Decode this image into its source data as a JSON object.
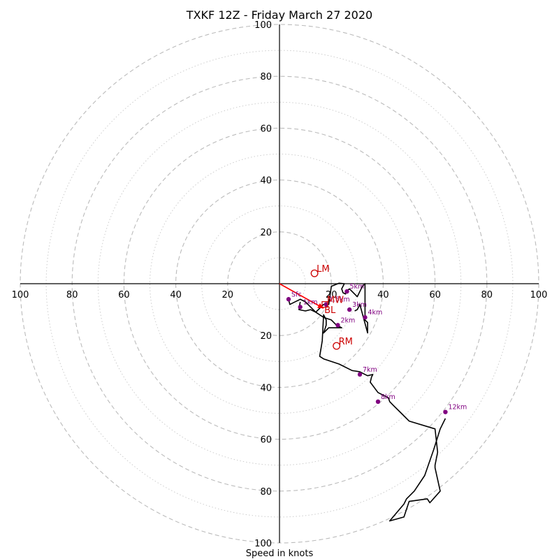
{
  "chart_data": {
    "type": "line",
    "title": "TXKF 12Z - Friday March 27 2020",
    "xlabel": "Speed in knots",
    "ylabel": "",
    "xlim": [
      -100,
      100
    ],
    "ylim": [
      -100,
      100
    ],
    "ring_major": [
      20,
      40,
      60,
      80,
      100
    ],
    "ring_minor": [
      10,
      30,
      50,
      70,
      90
    ],
    "tick_labels": {
      "left": [
        "100",
        "80",
        "60",
        "40",
        "20"
      ],
      "right": [
        "20",
        "40",
        "60",
        "80",
        "100"
      ],
      "top": [
        "100",
        "80",
        "60",
        "40",
        "20"
      ],
      "bottom": [
        "20",
        "40",
        "60",
        "80",
        "100"
      ]
    },
    "hodograph": {
      "x": [
        3.5,
        4,
        8,
        10,
        12,
        14,
        17,
        20,
        22,
        24,
        19,
        17,
        18,
        18,
        17,
        16.5,
        16,
        15.5,
        17,
        23,
        28,
        31,
        33,
        34,
        36,
        35.5,
        35,
        38,
        42,
        42.5,
        44,
        47,
        50,
        60,
        61,
        60,
        60,
        62,
        58,
        57,
        50,
        48,
        42.5,
        48,
        49,
        52,
        56,
        59.5,
        62,
        64
      ],
      "y": [
        -6,
        -8,
        -6,
        -7,
        -9,
        -11,
        -13,
        -14,
        -16,
        -17,
        -17,
        -19,
        -16,
        -14,
        -12,
        -22,
        -25,
        -28,
        -29,
        -31,
        -33.5,
        -34,
        -35,
        -35.5,
        -35,
        -36,
        -38,
        -42,
        -44,
        -45.5,
        -47,
        -50,
        -53,
        -56,
        -65,
        -70,
        -71,
        -80,
        -84.5,
        -83,
        -84,
        -90,
        -91.5,
        -85,
        -83,
        -80,
        -74,
        -64,
        -56,
        -52
      ]
    },
    "hodograph_branch": {
      "x": [
        8,
        7.5,
        10,
        12,
        14,
        17,
        19,
        20,
        23,
        25,
        24,
        24.5,
        25.5,
        25.5,
        27,
        30,
        32,
        33,
        33,
        34,
        34,
        31,
        30,
        29
      ],
      "y": [
        -7,
        -10,
        -10.5,
        -10,
        -11,
        -8,
        -8,
        -1,
        0.2,
        0,
        -2,
        -3.5,
        -4,
        -3,
        -2,
        -5,
        -1,
        0,
        -14,
        -15,
        -19,
        -8,
        -10,
        -10.5
      ]
    },
    "height_markers": [
      {
        "label": "Sfc",
        "x": 3.5,
        "y": -6
      },
      {
        "label": "1km",
        "x": 8,
        "y": -9
      },
      {
        "label": "1.5km",
        "x": 18,
        "y": -8
      },
      {
        "label": "2km",
        "x": 22.5,
        "y": -16
      },
      {
        "label": "3km",
        "x": 27,
        "y": -10
      },
      {
        "label": "4km",
        "x": 33,
        "y": -13
      },
      {
        "label": "5km",
        "x": 26,
        "y": -3
      },
      {
        "label": "7km",
        "x": 31,
        "y": -35
      },
      {
        "label": "8km",
        "x": 38,
        "y": -45.5
      },
      {
        "label": "12km",
        "x": 64,
        "y": -49.5
      }
    ],
    "storm_motions": [
      {
        "label": "LM",
        "x": 13.5,
        "y": 4
      },
      {
        "label": "RM",
        "x": 22,
        "y": -24
      },
      {
        "label": "MW",
        "x": 17.5,
        "y": -8
      }
    ],
    "bunkers_vector": {
      "label": "BL",
      "x": 17,
      "y": -9.5
    },
    "colors": {
      "hodograph": "#000000",
      "marker": "#800080",
      "motion": "#cc0000",
      "vector": "#ff0000"
    }
  }
}
